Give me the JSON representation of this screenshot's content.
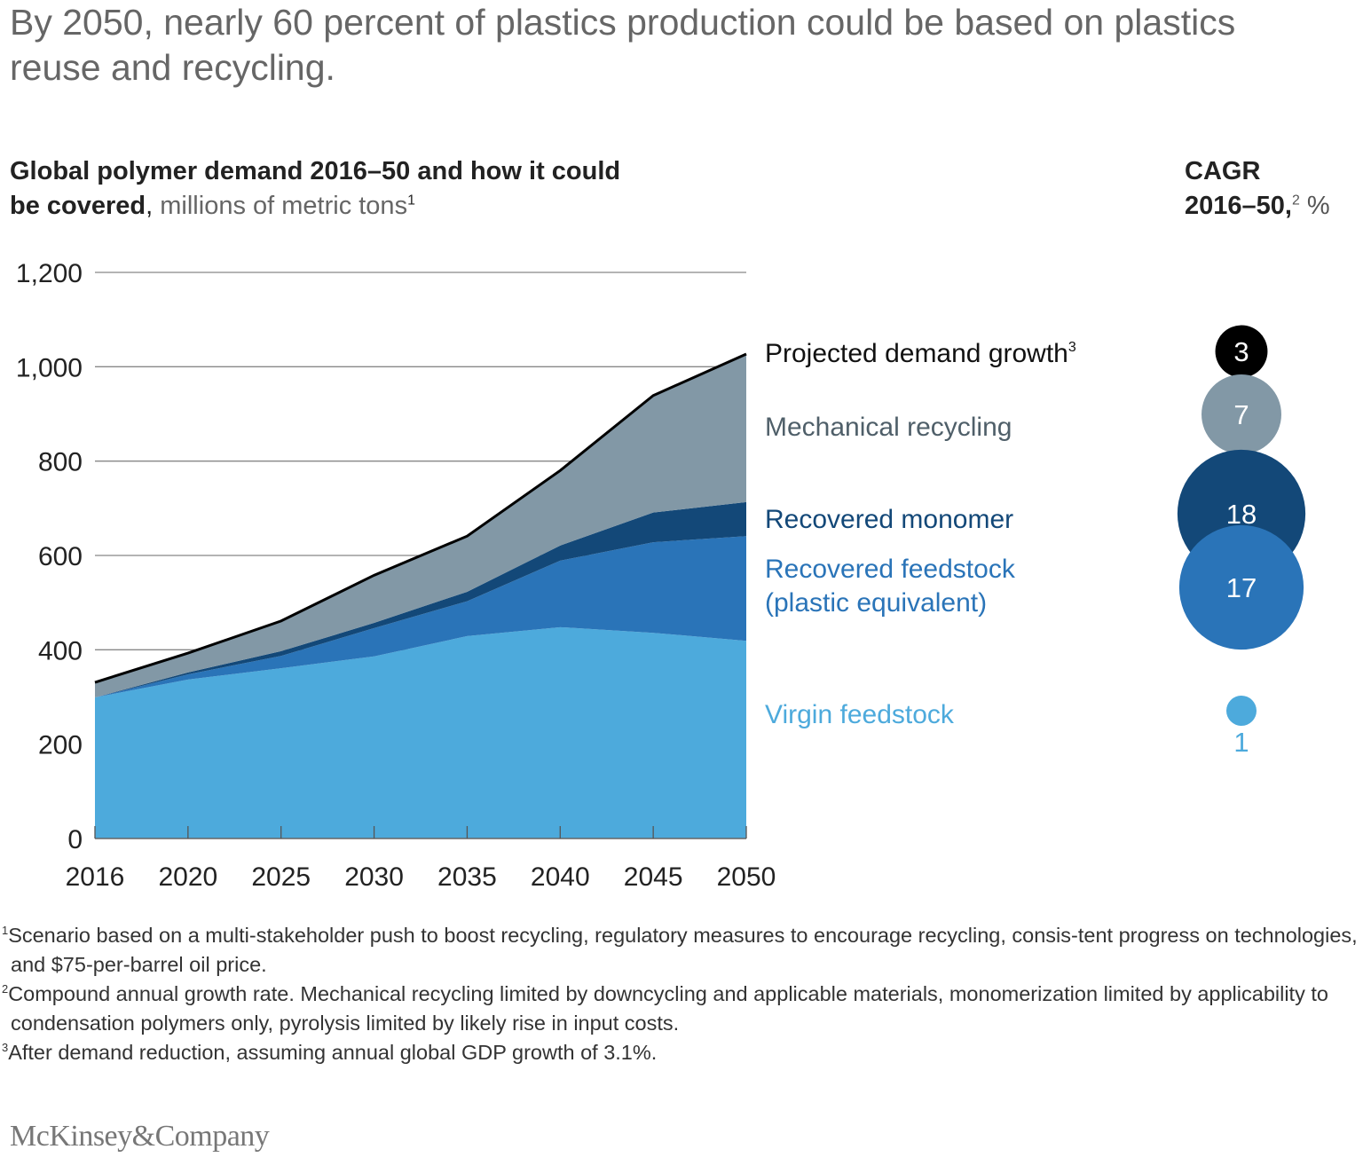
{
  "title": "By 2050, nearly 60 percent of plastics production could be based on plastics reuse and recycling.",
  "subtitle": {
    "bold": "Global polymer demand 2016–50 and how it could be covered",
    "unit": "millions of metric tons",
    "note": "1"
  },
  "cagr_header": {
    "line1": "CAGR",
    "line2": "2016–50,",
    "note": "2",
    "unit": "%"
  },
  "chart_data": {
    "type": "area",
    "stacked": true,
    "title": "Global polymer demand 2016–50 and how it could be covered, millions of metric tons",
    "categories": [
      "2016",
      "2020",
      "2025",
      "2030",
      "2035",
      "2040",
      "2045",
      "2050"
    ],
    "ylim": [
      0,
      1200
    ],
    "yticks": [
      "0",
      "200",
      "400",
      "600",
      "800",
      "1,000",
      "1,200"
    ],
    "ytick_values": [
      0,
      200,
      400,
      600,
      800,
      1000,
      1200
    ],
    "grid": true,
    "legend_placement": "right",
    "series": [
      {
        "name": "Virgin feedstock",
        "color": "#4DAADC",
        "values": [
          299,
          337,
          361,
          386,
          429,
          448,
          436,
          419
        ],
        "cagr": "1"
      },
      {
        "name": "Recovered feedstock (plastic equivalent)",
        "name_line1": "Recovered feedstock",
        "name_line2": "(plastic equivalent)",
        "color": "#2A74B8",
        "values": [
          0,
          11,
          26,
          60,
          74,
          141,
          192,
          222
        ],
        "cagr": "17"
      },
      {
        "name": "Recovered monomer",
        "color": "#134878",
        "values": [
          0,
          4,
          10,
          11,
          20,
          32,
          63,
          72
        ],
        "cagr": "18"
      },
      {
        "name": "Mechanical recycling",
        "color": "#8298A6",
        "values": [
          32,
          41,
          64,
          101,
          118,
          159,
          248,
          314
        ],
        "cagr": "7"
      }
    ],
    "total_line": {
      "name": "Projected demand growth",
      "note": "3",
      "color": "#000000",
      "values": [
        331,
        393,
        461,
        558,
        641,
        780,
        939,
        1027
      ],
      "cagr": "3"
    }
  },
  "footnotes": [
    {
      "mark": "1",
      "text": "Scenario based on a multi-stakeholder push to boost recycling, regulatory measures to encourage recycling, consis-tent progress on technologies, and $75-per-barrel oil price."
    },
    {
      "mark": "2",
      "text": "Compound annual growth rate. Mechanical recycling limited by downcycling and applicable materials, monomerization limited by applicability to condensation polymers only, pyrolysis limited by likely rise in input costs."
    },
    {
      "mark": "3",
      "text": "After demand reduction, assuming annual global GDP growth of 3.1%."
    }
  ],
  "logo": "McKinsey&Company"
}
